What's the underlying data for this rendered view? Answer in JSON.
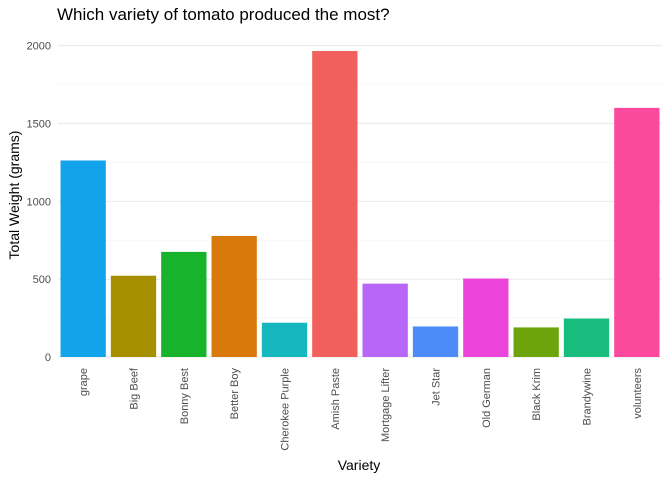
{
  "chart_data": {
    "type": "bar",
    "title": "Which variety of tomato produced the most?",
    "xlabel": "Variety",
    "ylabel": "Total Weight (grams)",
    "ylim": [
      0,
      2100
    ],
    "yticks": [
      0,
      500,
      1000,
      1500,
      2000
    ],
    "grid": true,
    "legend": "none",
    "categories": [
      "grape",
      "Big Beef",
      "Bonny Best",
      "Better Boy",
      "Cherokee Purple",
      "Amish Paste",
      "Mortgage Lifter",
      "Jet Star",
      "Old German",
      "Black Krim",
      "Brandywine",
      "volunteers"
    ],
    "values": [
      1262,
      522,
      675,
      777,
      220,
      1965,
      471,
      196,
      504,
      190,
      247,
      1600
    ],
    "colors": [
      "#13A3EB",
      "#A79000",
      "#17B32C",
      "#D9790C",
      "#16B8C0",
      "#F2605D",
      "#B866F7",
      "#4D8BF8",
      "#EC43DB",
      "#6DA40B",
      "#18BD7D",
      "#FB4A9E"
    ]
  }
}
